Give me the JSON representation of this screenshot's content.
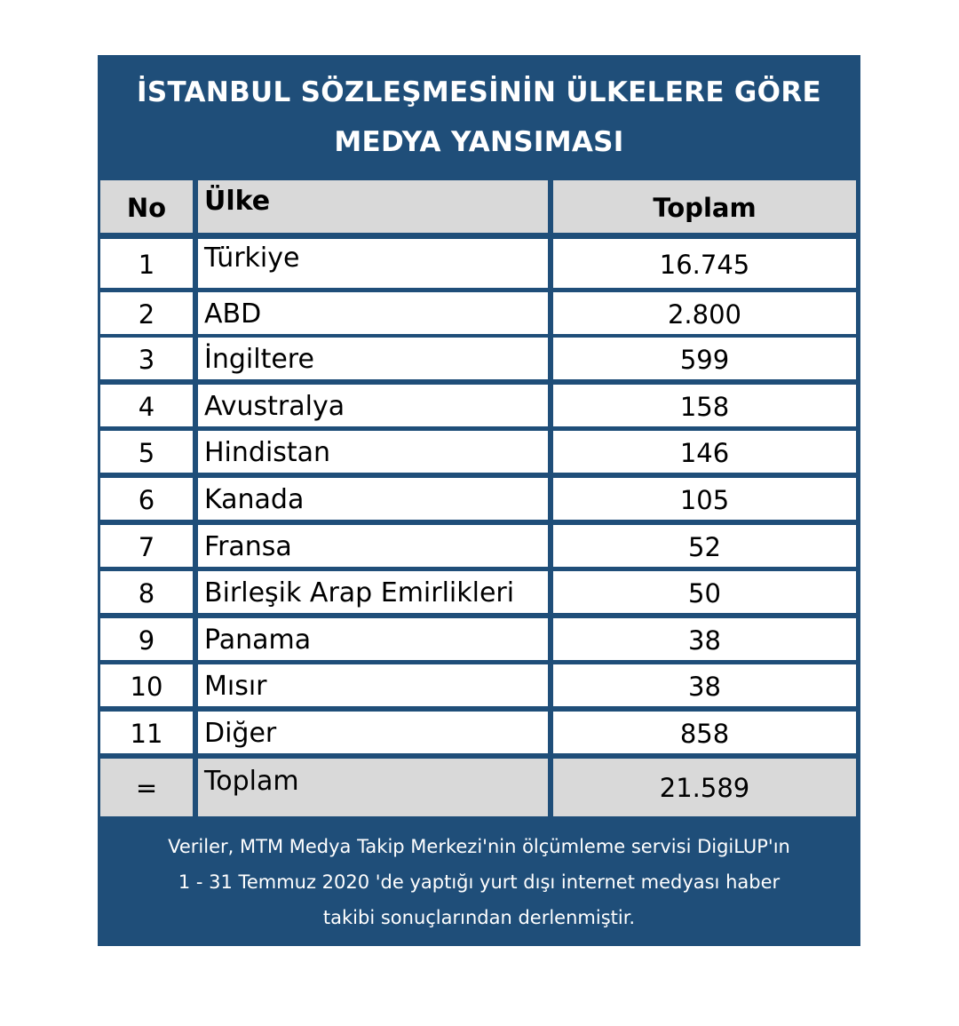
{
  "title": {
    "line1": "İSTANBUL SÖZLEŞMESİNİN ÜLKELERE GÖRE",
    "line2": "MEDYA YANSIMASI"
  },
  "header": {
    "no": "No",
    "country": "Ülke",
    "total": "Toplam"
  },
  "rows": [
    {
      "no": "1",
      "country": "Türkiye",
      "total": "16.745"
    },
    {
      "no": "2",
      "country": "ABD",
      "total": "2.800"
    },
    {
      "no": "3",
      "country": "İngiltere",
      "total": "599"
    },
    {
      "no": "4",
      "country": "Avustralya",
      "total": "158"
    },
    {
      "no": "5",
      "country": "Hindistan",
      "total": "146"
    },
    {
      "no": "6",
      "country": "Kanada",
      "total": "105"
    },
    {
      "no": "7",
      "country": "Fransa",
      "total": "52"
    },
    {
      "no": "8",
      "country": "Birleşik Arap Emirlikleri",
      "total": "50"
    },
    {
      "no": "9",
      "country": "Panama",
      "total": "38"
    },
    {
      "no": "10",
      "country": "Mısır",
      "total": "38"
    },
    {
      "no": "11",
      "country": "Diğer",
      "total": "858"
    }
  ],
  "sum": {
    "no": "=",
    "country": "Toplam",
    "total": "21.589"
  },
  "footnote": {
    "line1": "Veriler, MTM Medya Takip Merkezi'nin ölçümleme servisi DigiLUP'ın",
    "line2": "1 - 31 Temmuz 2020 'de yaptığı yurt dışı internet medyası haber",
    "line3": "takibi sonuçlarından derlenmiştir."
  },
  "chart_data": {
    "type": "table",
    "title": "İSTANBUL SÖZLEŞMESİNİN ÜLKELERE GÖRE MEDYA YANSIMASI",
    "columns": [
      "No",
      "Ülke",
      "Toplam"
    ],
    "categories": [
      "Türkiye",
      "ABD",
      "İngiltere",
      "Avustralya",
      "Hindistan",
      "Kanada",
      "Fransa",
      "Birleşik Arap Emirlikleri",
      "Panama",
      "Mısır",
      "Diğer"
    ],
    "values": [
      16745,
      2800,
      599,
      158,
      146,
      105,
      52,
      50,
      38,
      38,
      858
    ],
    "total": 21589
  },
  "colors": {
    "panel": "#1f4e79",
    "header_cell": "#d9d9d9",
    "cell": "#ffffff"
  }
}
